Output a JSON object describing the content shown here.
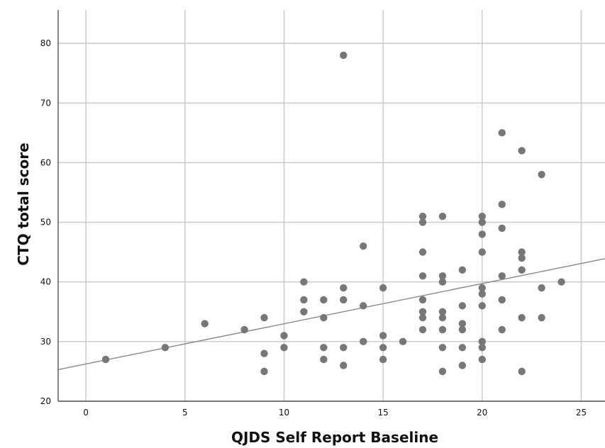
{
  "chart_data": {
    "type": "scatter",
    "title": "",
    "xlabel": "QJDS Self Report Baseline",
    "ylabel": "CTQ total score",
    "xlim": [
      -1.4,
      26.2
    ],
    "ylim": [
      20,
      85.6
    ],
    "x_ticks": [
      0,
      5,
      10,
      15,
      20,
      25
    ],
    "y_ticks": [
      20,
      30,
      40,
      50,
      60,
      70,
      80
    ],
    "grid": true,
    "legend": "none",
    "colors": {
      "points": "#777777",
      "fit_line": "#888888",
      "grid": "#c8c8c8",
      "axis": "#555555"
    },
    "fit_line": {
      "x": [
        -1.4,
        26.2
      ],
      "y": [
        25.3,
        43.9
      ]
    },
    "points": [
      {
        "x": 1,
        "y": 27
      },
      {
        "x": 4,
        "y": 29
      },
      {
        "x": 6,
        "y": 33
      },
      {
        "x": 8,
        "y": 32
      },
      {
        "x": 9,
        "y": 34
      },
      {
        "x": 9,
        "y": 28
      },
      {
        "x": 9,
        "y": 25
      },
      {
        "x": 10,
        "y": 31
      },
      {
        "x": 10,
        "y": 29
      },
      {
        "x": 11,
        "y": 40
      },
      {
        "x": 11,
        "y": 37
      },
      {
        "x": 11,
        "y": 35
      },
      {
        "x": 12,
        "y": 37
      },
      {
        "x": 12,
        "y": 34
      },
      {
        "x": 12,
        "y": 29
      },
      {
        "x": 12,
        "y": 27
      },
      {
        "x": 13,
        "y": 78
      },
      {
        "x": 13,
        "y": 39
      },
      {
        "x": 13,
        "y": 37
      },
      {
        "x": 13,
        "y": 29
      },
      {
        "x": 13,
        "y": 26
      },
      {
        "x": 14,
        "y": 46
      },
      {
        "x": 14,
        "y": 36
      },
      {
        "x": 14,
        "y": 30
      },
      {
        "x": 15,
        "y": 39
      },
      {
        "x": 15,
        "y": 31
      },
      {
        "x": 15,
        "y": 29
      },
      {
        "x": 15,
        "y": 27
      },
      {
        "x": 16,
        "y": 30
      },
      {
        "x": 17,
        "y": 51
      },
      {
        "x": 17,
        "y": 50
      },
      {
        "x": 17,
        "y": 45
      },
      {
        "x": 17,
        "y": 41
      },
      {
        "x": 17,
        "y": 37
      },
      {
        "x": 17,
        "y": 35
      },
      {
        "x": 17,
        "y": 34
      },
      {
        "x": 17,
        "y": 32
      },
      {
        "x": 18,
        "y": 51
      },
      {
        "x": 18,
        "y": 41
      },
      {
        "x": 18,
        "y": 40
      },
      {
        "x": 18,
        "y": 35
      },
      {
        "x": 18,
        "y": 34
      },
      {
        "x": 18,
        "y": 32
      },
      {
        "x": 18,
        "y": 29
      },
      {
        "x": 18,
        "y": 25
      },
      {
        "x": 19,
        "y": 42
      },
      {
        "x": 19,
        "y": 36
      },
      {
        "x": 19,
        "y": 33
      },
      {
        "x": 19,
        "y": 32
      },
      {
        "x": 19,
        "y": 29
      },
      {
        "x": 19,
        "y": 26
      },
      {
        "x": 20,
        "y": 51
      },
      {
        "x": 20,
        "y": 50
      },
      {
        "x": 20,
        "y": 48
      },
      {
        "x": 20,
        "y": 45
      },
      {
        "x": 20,
        "y": 39
      },
      {
        "x": 20,
        "y": 38
      },
      {
        "x": 20,
        "y": 36
      },
      {
        "x": 20,
        "y": 30
      },
      {
        "x": 20,
        "y": 29
      },
      {
        "x": 20,
        "y": 27
      },
      {
        "x": 21,
        "y": 65
      },
      {
        "x": 21,
        "y": 53
      },
      {
        "x": 21,
        "y": 49
      },
      {
        "x": 21,
        "y": 41
      },
      {
        "x": 21,
        "y": 37
      },
      {
        "x": 21,
        "y": 32
      },
      {
        "x": 22,
        "y": 62
      },
      {
        "x": 22,
        "y": 45
      },
      {
        "x": 22,
        "y": 44
      },
      {
        "x": 22,
        "y": 42
      },
      {
        "x": 22,
        "y": 34
      },
      {
        "x": 22,
        "y": 25
      },
      {
        "x": 23,
        "y": 58
      },
      {
        "x": 23,
        "y": 39
      },
      {
        "x": 23,
        "y": 34
      },
      {
        "x": 24,
        "y": 40
      }
    ]
  }
}
